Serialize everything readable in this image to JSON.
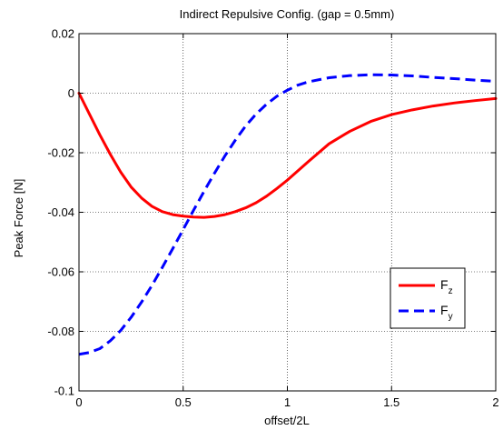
{
  "chart_data": {
    "type": "line",
    "title": "Indirect Repulsive Config. (gap = 0.5mm)",
    "xlabel": "offset/2L",
    "ylabel": "Peak Force [N]",
    "xlim": [
      0,
      2
    ],
    "ylim": [
      -0.1,
      0.02
    ],
    "xticks": [
      0,
      0.5,
      1,
      1.5,
      2
    ],
    "xtick_labels": [
      "0",
      "0.5",
      "1",
      "1.5",
      "2"
    ],
    "yticks": [
      0.02,
      0,
      -0.02,
      -0.04,
      -0.06,
      -0.08,
      -0.1
    ],
    "ytick_labels": [
      "0.02",
      "0",
      "-0.02",
      "-0.04",
      "-0.06",
      "-0.08",
      "-0.1"
    ],
    "grid": true,
    "legend_position": "lower-right",
    "series": [
      {
        "name": "F",
        "subscript": "z",
        "color": "#ff0000",
        "style": "solid",
        "x": [
          0,
          0.05,
          0.1,
          0.15,
          0.2,
          0.25,
          0.3,
          0.35,
          0.4,
          0.45,
          0.5,
          0.55,
          0.6,
          0.65,
          0.7,
          0.75,
          0.8,
          0.85,
          0.9,
          0.95,
          1.0,
          1.1,
          1.2,
          1.3,
          1.4,
          1.5,
          1.6,
          1.7,
          1.8,
          1.9,
          2.0
        ],
        "y": [
          0,
          -0.007,
          -0.014,
          -0.0205,
          -0.0265,
          -0.0315,
          -0.0352,
          -0.038,
          -0.0398,
          -0.0408,
          -0.0413,
          -0.0416,
          -0.0417,
          -0.0414,
          -0.0408,
          -0.0398,
          -0.0385,
          -0.0368,
          -0.0346,
          -0.032,
          -0.0292,
          -0.023,
          -0.017,
          -0.0128,
          -0.0095,
          -0.0072,
          -0.0056,
          -0.0043,
          -0.0033,
          -0.0025,
          -0.0018
        ]
      },
      {
        "name": "F",
        "subscript": "y",
        "color": "#0000ff",
        "style": "dashed",
        "x": [
          0,
          0.05,
          0.1,
          0.15,
          0.2,
          0.25,
          0.3,
          0.35,
          0.4,
          0.45,
          0.5,
          0.55,
          0.6,
          0.65,
          0.7,
          0.75,
          0.8,
          0.85,
          0.9,
          0.95,
          1.0,
          1.05,
          1.1,
          1.2,
          1.3,
          1.4,
          1.5,
          1.6,
          1.7,
          1.8,
          1.9,
          2.0
        ],
        "y": [
          -0.0877,
          -0.0871,
          -0.0858,
          -0.0832,
          -0.0797,
          -0.0753,
          -0.0702,
          -0.0646,
          -0.0585,
          -0.0522,
          -0.0458,
          -0.0393,
          -0.033,
          -0.0269,
          -0.0211,
          -0.0158,
          -0.011,
          -0.007,
          -0.0037,
          -0.001,
          0.001,
          0.0027,
          0.0038,
          0.0052,
          0.0059,
          0.0062,
          0.0061,
          0.0058,
          0.0053,
          0.0049,
          0.0044,
          0.004
        ]
      }
    ]
  }
}
